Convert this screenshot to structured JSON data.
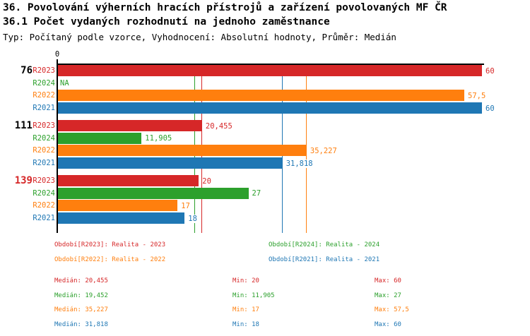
{
  "title": "36. Povolování výherních hracích přístrojů a zařízení povolovaných MF ČR",
  "subtitle": "36.1 Počet vydaných rozhodnutí na jednoho zaměstnance",
  "meta": "Typ: Počítaný podle vzorce, Vyhodnocení: Absolutní hodnoty, Průměr: Medián",
  "colors": {
    "R2023": "#d62728",
    "R2024": "#2ca02c",
    "R2022": "#ff7f0e",
    "R2021": "#1f77b4",
    "axis": "#000000",
    "highlighted_group_label": "#d62728",
    "normal_group_label": "#000000",
    "background": "#ffffff"
  },
  "chart_data": {
    "type": "bar",
    "orientation": "horizontal-grouped",
    "axis": {
      "tick_label": "0",
      "xlim": [
        0,
        60.2
      ],
      "grid": false
    },
    "series_order": [
      "R2023",
      "R2024",
      "R2022",
      "R2021"
    ],
    "groups": [
      {
        "label": "76",
        "highlighted": false,
        "bars": [
          {
            "series": "R2023",
            "value": 60,
            "display": "60"
          },
          {
            "series": "R2024",
            "value": null,
            "display": "NA"
          },
          {
            "series": "R2022",
            "value": 57.5,
            "display": "57,5"
          },
          {
            "series": "R2021",
            "value": 60,
            "display": "60"
          }
        ]
      },
      {
        "label": "111",
        "highlighted": false,
        "bars": [
          {
            "series": "R2023",
            "value": 20.455,
            "display": "20,455"
          },
          {
            "series": "R2024",
            "value": 11.905,
            "display": "11,905"
          },
          {
            "series": "R2022",
            "value": 35.227,
            "display": "35,227"
          },
          {
            "series": "R2021",
            "value": 31.818,
            "display": "31,818"
          }
        ]
      },
      {
        "label": "139",
        "highlighted": true,
        "bars": [
          {
            "series": "R2023",
            "value": 20,
            "display": "20"
          },
          {
            "series": "R2024",
            "value": 27,
            "display": "27"
          },
          {
            "series": "R2022",
            "value": 17,
            "display": "17"
          },
          {
            "series": "R2021",
            "value": 18,
            "display": "18"
          }
        ]
      }
    ],
    "median_lines": [
      {
        "series": "R2023",
        "value": 20.455
      },
      {
        "series": "R2024",
        "value": 19.452
      },
      {
        "series": "R2022",
        "value": 35.227
      },
      {
        "series": "R2021",
        "value": 31.818
      }
    ]
  },
  "legend": {
    "items": [
      {
        "series": "R2023",
        "label": "Období[R2023]: Realita - 2023"
      },
      {
        "series": "R2024",
        "label": "Období[R2024]: Realita - 2024"
      },
      {
        "series": "R2022",
        "label": "Období[R2022]: Realita - 2022"
      },
      {
        "series": "R2021",
        "label": "Období[R2021]: Realita - 2021"
      }
    ]
  },
  "stats": {
    "rows": [
      {
        "series": "R2023",
        "median": "Medián: 20,455",
        "min": "Min: 20",
        "max": "Max: 60"
      },
      {
        "series": "R2024",
        "median": "Medián: 19,452",
        "min": "Min: 11,905",
        "max": "Max: 27"
      },
      {
        "series": "R2022",
        "median": "Medián: 35,227",
        "min": "Min: 17",
        "max": "Max: 57,5"
      },
      {
        "series": "R2021",
        "median": "Medián: 31,818",
        "min": "Min: 18",
        "max": "Max: 60"
      }
    ]
  }
}
